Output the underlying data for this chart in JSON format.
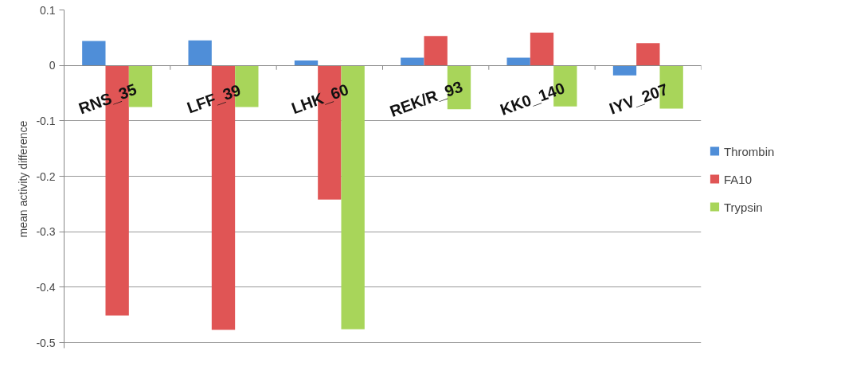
{
  "chart_data": {
    "type": "bar",
    "ylabel": "mean activity difference",
    "categories": [
      "RNS_35",
      "LFF_39",
      "LHK_60",
      "REK/R_93",
      "KK0_140",
      "IYV_207"
    ],
    "series": [
      {
        "name": "Thrombin",
        "color": "#4f8ed8",
        "values": [
          0.044,
          0.045,
          0.009,
          0.014,
          0.014,
          -0.018
        ]
      },
      {
        "name": "FA10",
        "color": "#e05555",
        "values": [
          -0.451,
          -0.477,
          -0.242,
          0.053,
          0.059,
          0.04
        ]
      },
      {
        "name": "Trypsin",
        "color": "#a8d55a",
        "values": [
          -0.075,
          -0.075,
          -0.476,
          -0.079,
          -0.074,
          -0.078
        ]
      }
    ],
    "ylim": [
      -0.51,
      0.1
    ],
    "yticks": [
      0.1,
      0,
      -0.1,
      -0.2,
      -0.3,
      -0.4,
      -0.5
    ],
    "grid": "y",
    "legend": "right"
  }
}
